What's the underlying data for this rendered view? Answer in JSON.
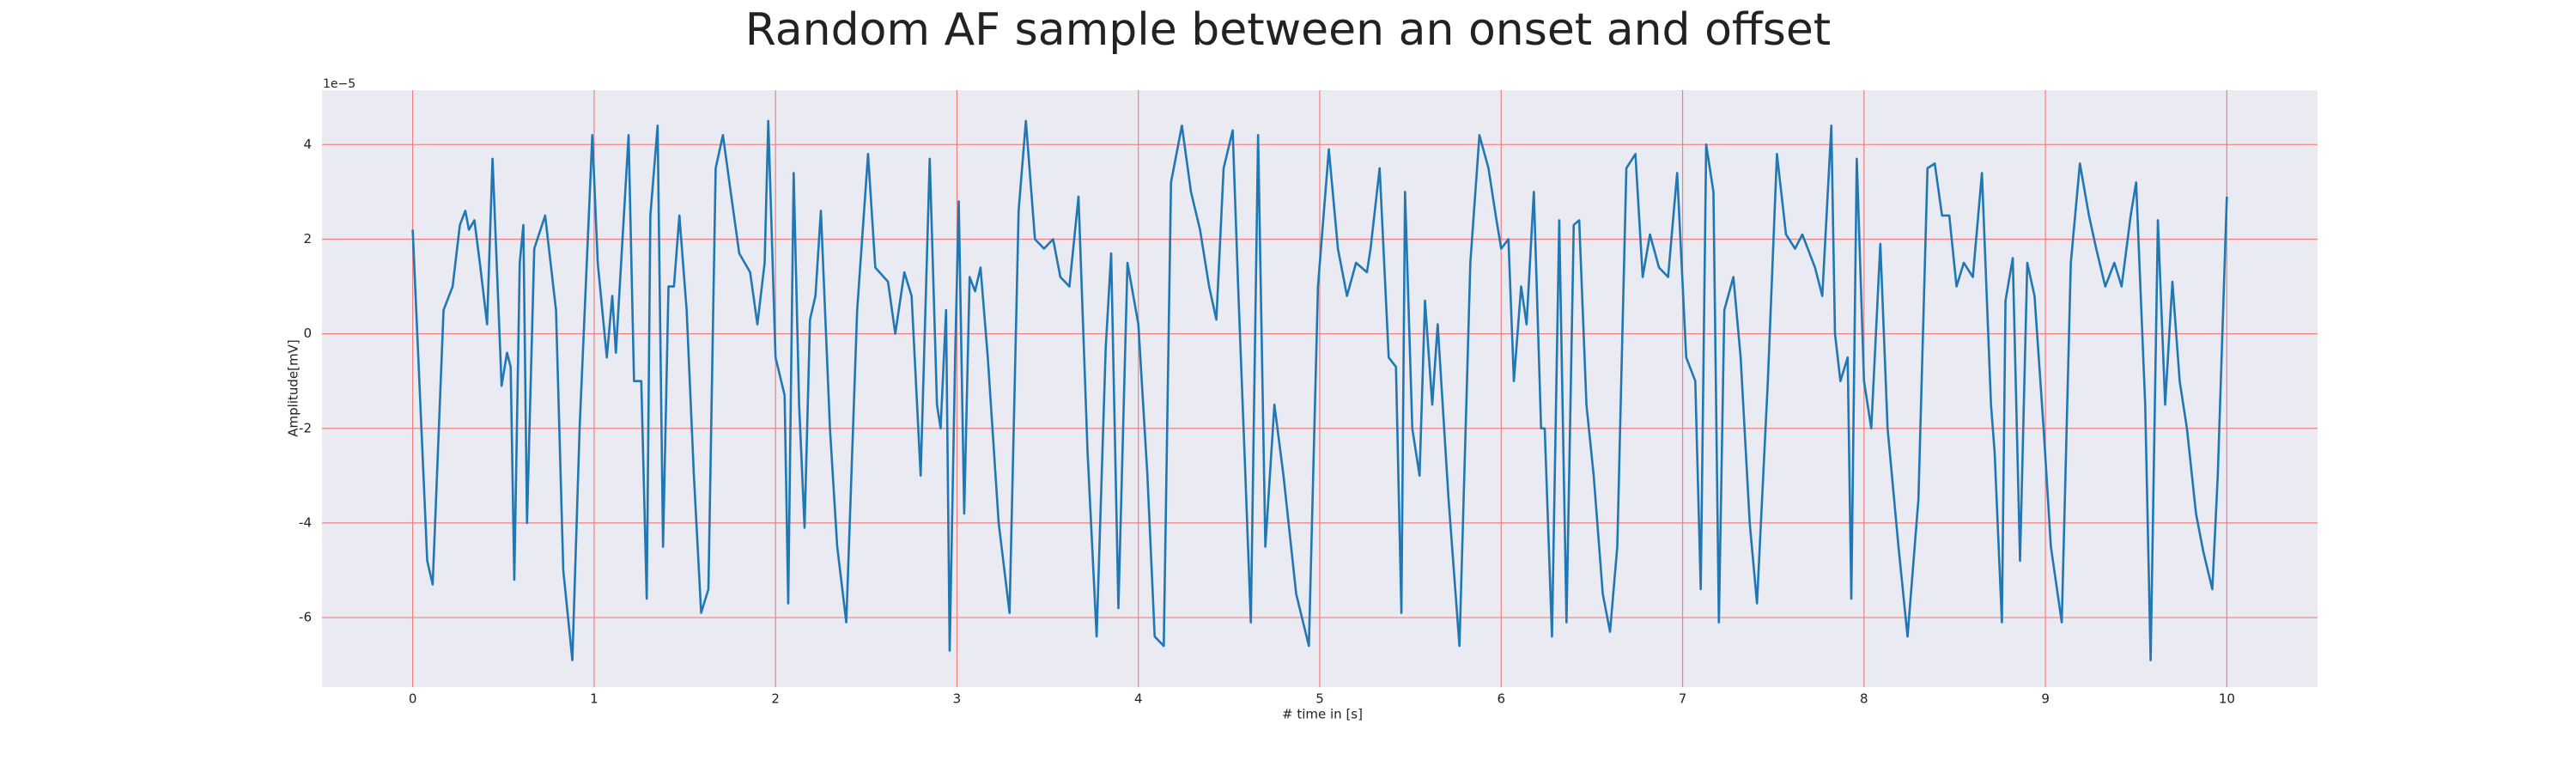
{
  "chart_data": {
    "type": "line",
    "title": "Random AF sample between an onset and offset",
    "xlabel": "# time in [s]",
    "ylabel": "Amplitude[mV]",
    "y_offset_label": "1e−5",
    "xlim": [
      -0.5,
      10.5
    ],
    "ylim": [
      -7.47,
      5.15
    ],
    "xticks": [
      0,
      1,
      2,
      3,
      4,
      5,
      6,
      7,
      8,
      9,
      10
    ],
    "yticks": [
      -6,
      -4,
      -2,
      0,
      2,
      4
    ],
    "grid": true,
    "grid_color": "#f08080",
    "background": "#eaeaf2",
    "color": "#1f77b4",
    "x": [
      0,
      0.08,
      0.11,
      0.17,
      0.22,
      0.26,
      0.29,
      0.31,
      0.34,
      0.37,
      0.41,
      0.44,
      0.49,
      0.52,
      0.54,
      0.56,
      0.59,
      0.61,
      0.63,
      0.67,
      0.73,
      0.79,
      0.83,
      0.88,
      0.92,
      0.99,
      1.02,
      1.07,
      1.1,
      1.12,
      1.19,
      1.22,
      1.26,
      1.29,
      1.31,
      1.35,
      1.38,
      1.41,
      1.44,
      1.47,
      1.51,
      1.55,
      1.59,
      1.63,
      1.67,
      1.71,
      1.76,
      1.8,
      1.86,
      1.9,
      1.94,
      1.96,
      2.0,
      2.05,
      2.07,
      2.1,
      2.13,
      2.16,
      2.19,
      2.22,
      2.25,
      2.3,
      2.34,
      2.39,
      2.45,
      2.51,
      2.55,
      2.62,
      2.66,
      2.71,
      2.75,
      2.8,
      2.85,
      2.89,
      2.91,
      2.94,
      2.96,
      2.99,
      3.01,
      3.04,
      3.07,
      3.1,
      3.13,
      3.17,
      3.23,
      3.29,
      3.34,
      3.38,
      3.43,
      3.48,
      3.53,
      3.57,
      3.62,
      3.67,
      3.72,
      3.77,
      3.82,
      3.85,
      3.89,
      3.94,
      4.0,
      4.05,
      4.09,
      4.14,
      4.18,
      4.24,
      4.29,
      4.34,
      4.39,
      4.43,
      4.47,
      4.52,
      4.55,
      4.59,
      4.62,
      4.66,
      4.7,
      4.75,
      4.8,
      4.87,
      4.94,
      4.99,
      5.05,
      5.1,
      5.15,
      5.2,
      5.26,
      5.28,
      5.33,
      5.38,
      5.42,
      5.45,
      5.47,
      5.51,
      5.55,
      5.58,
      5.62,
      5.65,
      5.71,
      5.77,
      5.83,
      5.88,
      5.93,
      5.97,
      6.0,
      6.04,
      6.07,
      6.11,
      6.14,
      6.18,
      6.22,
      6.24,
      6.28,
      6.32,
      6.36,
      6.4,
      6.43,
      6.47,
      6.51,
      6.56,
      6.6,
      6.64,
      6.69,
      6.74,
      6.78,
      6.82,
      6.87,
      6.92,
      6.97,
      7.02,
      7.07,
      7.1,
      7.13,
      7.17,
      7.2,
      7.23,
      7.28,
      7.32,
      7.37,
      7.41,
      7.47,
      7.52,
      7.57,
      7.62,
      7.66,
      7.73,
      7.77,
      7.82,
      7.84,
      7.87,
      7.91,
      7.93,
      7.96,
      8.0,
      8.04,
      8.09,
      8.13,
      8.19,
      8.24,
      8.3,
      8.35,
      8.39,
      8.43,
      8.47,
      8.51,
      8.55,
      8.6,
      8.65,
      8.7,
      8.72,
      8.76,
      8.78,
      8.82,
      8.86,
      8.9,
      8.94,
      8.99,
      9.03,
      9.09,
      9.14,
      9.19,
      9.24,
      9.28,
      9.33,
      9.38,
      9.42,
      9.47,
      9.5,
      9.55,
      9.58,
      9.62,
      9.66,
      9.7,
      9.74,
      9.78,
      9.83,
      9.87,
      9.92,
      9.95,
      10.0
    ],
    "values": [
      2.2,
      -4.8,
      -5.3,
      0.5,
      1.0,
      2.3,
      2.6,
      2.2,
      2.4,
      1.5,
      0.2,
      3.7,
      -1.1,
      -0.4,
      -0.7,
      -5.2,
      1.5,
      2.3,
      -4.0,
      1.8,
      2.5,
      0.5,
      -5.0,
      -6.9,
      -2.0,
      4.2,
      1.5,
      -0.5,
      0.8,
      -0.4,
      4.2,
      -1.0,
      -1.0,
      -5.6,
      2.5,
      4.4,
      -4.5,
      1.0,
      1.0,
      2.5,
      0.5,
      -3.0,
      -5.9,
      -5.4,
      3.5,
      4.2,
      2.8,
      1.7,
      1.3,
      0.2,
      1.5,
      4.5,
      -0.5,
      -1.3,
      -5.7,
      3.4,
      -1.5,
      -4.1,
      0.3,
      0.8,
      2.6,
      -2.0,
      -4.5,
      -6.1,
      0.5,
      3.8,
      1.4,
      1.1,
      0.0,
      1.3,
      0.8,
      -3.0,
      3.7,
      -1.5,
      -2.0,
      0.5,
      -6.7,
      -0.5,
      2.8,
      -3.8,
      1.2,
      0.9,
      1.4,
      -0.5,
      -4.0,
      -5.9,
      2.6,
      4.5,
      2.0,
      1.8,
      2.0,
      1.2,
      1.0,
      2.9,
      -2.5,
      -6.4,
      -0.3,
      1.7,
      -5.8,
      1.5,
      0.2,
      -3.0,
      -6.4,
      -6.6,
      3.2,
      4.4,
      3.0,
      2.2,
      1.0,
      0.3,
      3.5,
      4.3,
      1.0,
      -3.0,
      -6.1,
      4.2,
      -4.5,
      -1.5,
      -3.0,
      -5.5,
      -6.6,
      1.0,
      3.9,
      1.8,
      0.8,
      1.5,
      1.3,
      1.8,
      3.5,
      -0.5,
      -0.7,
      -5.9,
      3.0,
      -2.0,
      -3.0,
      0.7,
      -1.5,
      0.2,
      -3.5,
      -6.6,
      1.5,
      4.2,
      3.5,
      2.5,
      1.8,
      2.0,
      -1.0,
      1.0,
      0.2,
      3.0,
      -2.0,
      -2.0,
      -6.4,
      2.4,
      -6.1,
      2.3,
      2.4,
      -1.5,
      -3.0,
      -5.5,
      -6.3,
      -4.5,
      3.5,
      3.8,
      1.2,
      2.1,
      1.4,
      1.2,
      3.4,
      -0.5,
      -1.0,
      -5.4,
      4.0,
      3.0,
      -6.1,
      0.5,
      1.2,
      -0.5,
      -4.0,
      -5.7,
      -1.0,
      3.8,
      2.1,
      1.8,
      2.1,
      1.4,
      0.8,
      4.4,
      0.0,
      -1.0,
      -0.5,
      -5.6,
      3.7,
      -1.0,
      -2.0,
      1.9,
      -2.0,
      -4.5,
      -6.4,
      -3.5,
      3.5,
      3.6,
      2.5,
      2.5,
      1.0,
      1.5,
      1.2,
      3.4,
      -1.5,
      -2.5,
      -6.1,
      0.7,
      1.6,
      -4.8,
      1.5,
      0.8,
      -2.0,
      -4.5,
      -6.1,
      1.5,
      3.6,
      2.5,
      1.8,
      1.0,
      1.5,
      1.0,
      2.5,
      3.2,
      -1.5,
      -6.9,
      2.4,
      -1.5,
      1.1,
      -1.0,
      -2.0,
      -3.8,
      -4.6,
      -5.4,
      -3.0,
      2.9
    ]
  }
}
